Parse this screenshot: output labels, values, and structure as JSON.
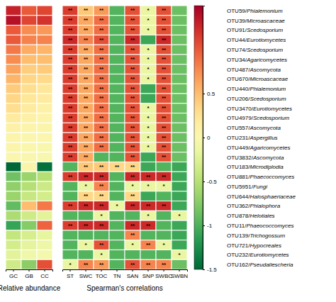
{
  "chart_data": {
    "type": "heatmap",
    "rows": [
      "OTU59/Phialemonium",
      "OTU39/Microascaceae",
      "OTU91/Scedosporium",
      "OTU44/Eurotiomycetes",
      "OTU74/Scedosporium",
      "OTU34/Agaricomycetes",
      "OTU487/Ascomycota",
      "OTU670/Microascaceae",
      "OTU440/Phialemonium",
      "OTU206/Scedosporium",
      "OTU3470/Eurotiomycetes",
      "OTU4979/Scedosporium",
      "OTU557/Ascomycota",
      "OTU231/Aspergillus",
      "OTU449/Agaricomycetes",
      "OTU3832/Ascomycota",
      "OTU183/Microdiplodia",
      "OTU881/Phaecoccomyces",
      "OTU5951/Fungi",
      "OTU644/Halosphaeriaceae",
      "OTU362/Phialophora",
      "OTU878/Helotiales",
      "OTU11/Phaeococcomyces",
      "OTU139/Trichogossum",
      "OTU721/Hypocreales",
      "OTU232/Eurotiomycetes",
      "OTU162/Pseudallescheria"
    ],
    "panels": [
      {
        "xlabel": "Relative abundance",
        "categories": [
          "GC",
          "GB",
          "CC"
        ],
        "values": [
          [
            1.3,
            1.0,
            1.1
          ],
          [
            1.4,
            1.1,
            1.2
          ],
          [
            1.0,
            0.75,
            0.7
          ],
          [
            1.0,
            0.8,
            0.8
          ],
          [
            0.85,
            0.6,
            0.55
          ],
          [
            0.75,
            0.5,
            0.5
          ],
          [
            0.65,
            0.4,
            0.42
          ],
          [
            0.55,
            0.35,
            0.32
          ],
          [
            0.42,
            0.28,
            0.22
          ],
          [
            0.35,
            0.22,
            0.18
          ],
          [
            0.28,
            0.18,
            0.12
          ],
          [
            0.18,
            0.12,
            0.08
          ],
          [
            0.12,
            0.08,
            0.05
          ],
          [
            0.08,
            0.04,
            0.03
          ],
          [
            0.05,
            0.02,
            0.01
          ],
          [
            0.03,
            0.01,
            -0.02
          ],
          [
            -1.5,
            0.05,
            -1.45
          ],
          [
            -0.85,
            -0.65,
            -0.5
          ],
          [
            -0.7,
            -0.5,
            -0.38
          ],
          [
            -0.65,
            -0.4,
            -0.32
          ],
          [
            -0.9,
            0.5,
            0.85
          ],
          [
            -0.55,
            -0.35,
            -0.22
          ],
          [
            -1.1,
            -0.75,
            0.95
          ],
          [
            -0.42,
            -0.3,
            -0.18
          ],
          [
            -0.32,
            -0.2,
            -0.12
          ],
          [
            -0.22,
            -0.1,
            -0.06
          ],
          [
            -0.35,
            -0.72,
            1.05
          ]
        ],
        "color_range": [
          -1.5,
          1.5
        ],
        "colorbar_ticks": [
          0.5,
          0,
          -0.5,
          -1,
          -1.5
        ]
      },
      {
        "xlabel": "Spearman's correlations",
        "categories": [
          "ST",
          "SWC",
          "TOC",
          "TN",
          "SAN",
          "SNP",
          "SWBC",
          "SWBN"
        ],
        "values": [
          [
            0.75,
            0.55,
            0.62,
            0.15,
            0.72,
            0.38,
            0.72,
            0.18
          ],
          [
            0.75,
            0.6,
            0.68,
            0.15,
            0.72,
            0.38,
            0.72,
            0.18
          ],
          [
            0.75,
            0.6,
            0.68,
            0.15,
            0.72,
            0.38,
            0.72,
            0.18
          ],
          [
            0.78,
            0.65,
            0.72,
            0.15,
            0.78,
            0.12,
            0.78,
            0.18
          ],
          [
            0.75,
            0.6,
            0.68,
            0.15,
            0.72,
            0.38,
            0.72,
            0.18
          ],
          [
            0.75,
            0.6,
            0.68,
            0.15,
            0.72,
            0.38,
            0.72,
            0.18
          ],
          [
            0.75,
            0.6,
            0.68,
            0.15,
            0.72,
            0.38,
            0.72,
            0.18
          ],
          [
            0.75,
            0.6,
            0.68,
            0.15,
            0.72,
            0.38,
            0.72,
            0.18
          ],
          [
            0.75,
            0.6,
            0.68,
            0.15,
            0.72,
            0.12,
            0.72,
            0.18
          ],
          [
            0.75,
            0.6,
            0.68,
            0.15,
            0.72,
            0.12,
            0.72,
            0.18
          ],
          [
            0.75,
            0.6,
            0.68,
            0.15,
            0.72,
            0.38,
            0.72,
            0.18
          ],
          [
            0.75,
            0.6,
            0.68,
            0.15,
            0.72,
            0.38,
            0.72,
            0.18
          ],
          [
            0.75,
            0.6,
            0.68,
            0.15,
            0.72,
            0.38,
            0.72,
            0.18
          ],
          [
            0.75,
            0.6,
            0.68,
            0.15,
            0.72,
            0.38,
            0.72,
            0.18
          ],
          [
            0.75,
            0.6,
            0.68,
            0.15,
            0.72,
            0.38,
            0.72,
            0.18
          ],
          [
            0.75,
            0.6,
            0.15,
            0.15,
            0.72,
            0.12,
            0.72,
            0.18
          ],
          [
            0.15,
            0.55,
            0.55,
            0.52,
            0.52,
            0.12,
            0.15,
            0.12
          ],
          [
            0.75,
            0.78,
            0.78,
            0.15,
            0.78,
            0.78,
            0.78,
            0.12
          ],
          [
            0.15,
            0.38,
            0.65,
            0.15,
            0.38,
            0.38,
            0.38,
            0.12
          ],
          [
            0.15,
            0.52,
            0.52,
            0.15,
            0.52,
            0.12,
            0.15,
            0.12
          ],
          [
            0.75,
            0.78,
            0.78,
            0.38,
            0.78,
            0.78,
            0.78,
            0.12
          ],
          [
            0.15,
            0.15,
            0.38,
            0.15,
            0.15,
            0.38,
            0.15,
            0.38
          ],
          [
            0.75,
            0.78,
            0.78,
            0.15,
            0.78,
            0.78,
            0.15,
            0.12
          ],
          [
            0.15,
            0.15,
            0.15,
            0.15,
            0.65,
            0.15,
            0.15,
            0.12
          ],
          [
            0.15,
            0.38,
            0.72,
            0.15,
            0.38,
            0.65,
            0.38,
            0.12
          ],
          [
            0.15,
            0.15,
            0.38,
            0.15,
            0.15,
            0.15,
            0.15,
            0.38
          ],
          [
            0.38,
            0.65,
            0.62,
            0.15,
            0.72,
            0.65,
            0.65,
            0.18
          ]
        ],
        "color_range": [
          0.0,
          0.85
        ],
        "cell_labels": [
          [
            "**",
            "**",
            "**",
            null,
            "**",
            "*",
            "**",
            null
          ],
          [
            "**",
            "**",
            "**",
            null,
            "**",
            "*",
            "**",
            null
          ],
          [
            "**",
            "**",
            "**",
            null,
            "**",
            "*",
            "**",
            null
          ],
          [
            "**",
            "**",
            "**",
            null,
            "**",
            null,
            "**",
            null
          ],
          [
            "**",
            "**",
            "**",
            null,
            "**",
            "*",
            "**",
            null
          ],
          [
            "**",
            "**",
            "**",
            null,
            "**",
            "*",
            "**",
            null
          ],
          [
            "**",
            "**",
            "**",
            null,
            "**",
            "*",
            "**",
            null
          ],
          [
            "**",
            "**",
            "**",
            null,
            "**",
            "*",
            "**",
            null
          ],
          [
            "**",
            "**",
            "**",
            null,
            "**",
            null,
            "**",
            null
          ],
          [
            "**",
            "**",
            "**",
            null,
            "**",
            null,
            "**",
            null
          ],
          [
            "**",
            "**",
            "**",
            null,
            "**",
            "*",
            "**",
            null
          ],
          [
            "**",
            "**",
            "**",
            null,
            "**",
            "*",
            "**",
            null
          ],
          [
            "**",
            "**",
            "**",
            null,
            "**",
            "*",
            "**",
            null
          ],
          [
            "**",
            "**",
            "**",
            null,
            "**",
            "*",
            "**",
            null
          ],
          [
            "**",
            "**",
            "**",
            null,
            "**",
            "*",
            "**",
            null
          ],
          [
            "**",
            "**",
            null,
            null,
            "**",
            null,
            "**",
            null
          ],
          [
            null,
            "**",
            "**",
            "**",
            "**",
            null,
            null,
            null
          ],
          [
            "**",
            "**",
            "**",
            null,
            "**",
            "**",
            "**",
            null
          ],
          [
            null,
            "*",
            "**",
            null,
            "*",
            "*",
            "*",
            null
          ],
          [
            null,
            "**",
            "**",
            null,
            "**",
            null,
            null,
            null
          ],
          [
            "**",
            "**",
            "**",
            "*",
            "**",
            "**",
            "**",
            null
          ],
          [
            null,
            null,
            "*",
            null,
            null,
            "*",
            null,
            "*"
          ],
          [
            "**",
            "**",
            "**",
            null,
            "**",
            "**",
            null,
            null
          ],
          [
            null,
            null,
            null,
            null,
            "**",
            null,
            null,
            null
          ],
          [
            null,
            "*",
            "**",
            null,
            "*",
            "**",
            "*",
            null
          ],
          [
            null,
            null,
            "*",
            null,
            null,
            null,
            null,
            "*"
          ],
          [
            "*",
            "**",
            "**",
            null,
            "**",
            "**",
            "**",
            null
          ]
        ]
      }
    ]
  }
}
